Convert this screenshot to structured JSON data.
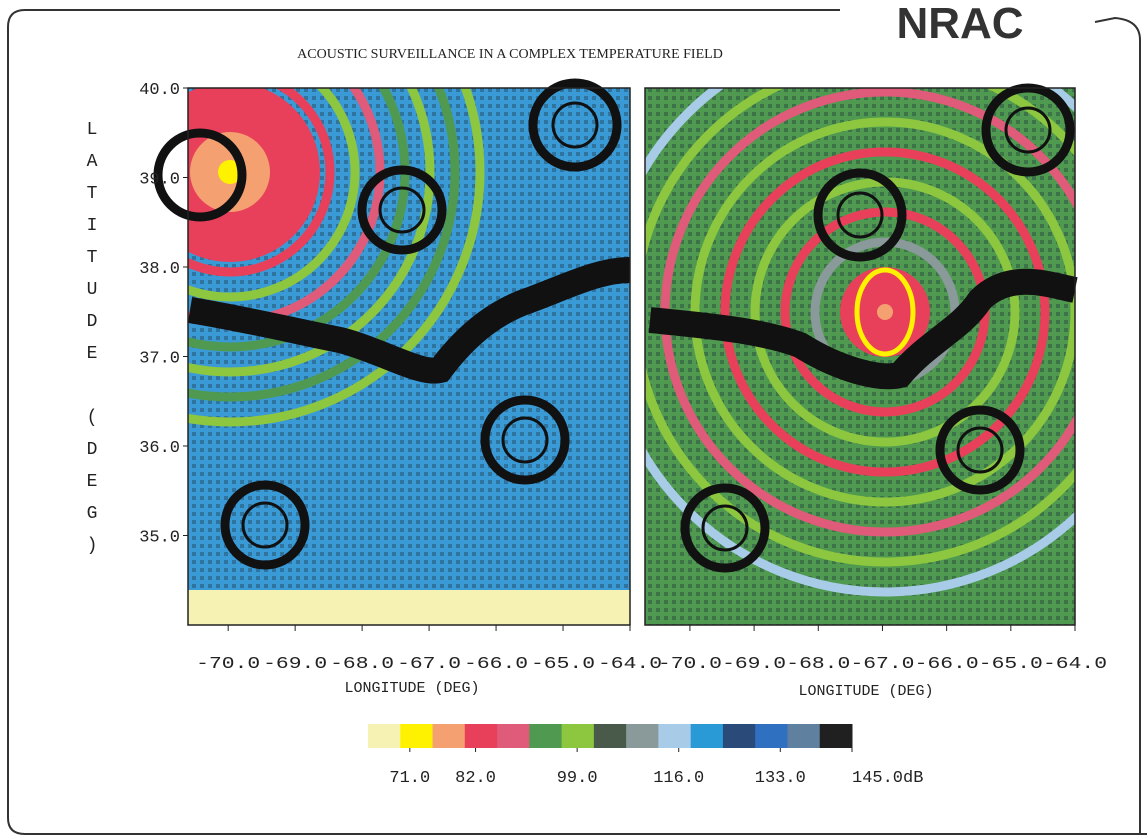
{
  "header": "NRAC",
  "chart_data": [
    {
      "type": "heatmap",
      "title": "ACOUSTIC SURVEILLANCE IN A COMPLEX TEMPERATURE FIELD",
      "ylabel": "LATITUDE (DEG)",
      "xlabel": "LONGITUDE (DEG)",
      "xlim": [
        -70.6,
        -64
      ],
      "ylim": [
        34,
        40
      ],
      "xticks": [
        {
          "value": -70,
          "label": "-70.0"
        },
        {
          "value": -69,
          "label": "-69.0"
        },
        {
          "value": -68,
          "label": "-68.0"
        },
        {
          "value": -67,
          "label": "-67.0"
        },
        {
          "value": -66,
          "label": "-66.0"
        },
        {
          "value": -65,
          "label": "-65.0"
        },
        {
          "value": -64,
          "label": "-64.0"
        }
      ],
      "yticks": [
        {
          "value": 40,
          "label": "40.0"
        },
        {
          "value": 39,
          "label": "39.0"
        },
        {
          "value": 38,
          "label": "38.0"
        },
        {
          "value": 37,
          "label": "37.0"
        },
        {
          "value": 36,
          "label": "36.0"
        },
        {
          "value": 35,
          "label": "35.0"
        }
      ],
      "colorbar": {
        "colors": [
          "#f6f2b4",
          "#fff200",
          "#f4a070",
          "#e8405a",
          "#e05a7a",
          "#4f9a50",
          "#8dc63f",
          "#4a5a4a",
          "#8a9a9a",
          "#a8cce8",
          "#2a9ad6",
          "#2a4a7a",
          "#3070c0",
          "#6080a0",
          "#202020"
        ],
        "lim": [
          64,
          145
        ],
        "ticks": [
          {
            "value": 71,
            "label": "71.0"
          },
          {
            "value": 82,
            "label": "82.0"
          },
          {
            "value": 99,
            "label": "99.0"
          },
          {
            "value": 116,
            "label": "116.0"
          },
          {
            "value": 133,
            "label": "133.0"
          },
          {
            "value": 145,
            "label": "145.0dB"
          }
        ]
      }
    },
    {
      "type": "heatmap",
      "xlabel": "LONGITUDE (DEG)",
      "xlim": [
        -70.7,
        -64
      ],
      "xticks": [
        {
          "value": -70,
          "label": "-70.0"
        },
        {
          "value": -69,
          "label": "-69.0"
        },
        {
          "value": -68,
          "label": "-68.0"
        },
        {
          "value": -67,
          "label": "-67.0"
        },
        {
          "value": -66,
          "label": "-66.0"
        },
        {
          "value": -65,
          "label": "-65.0"
        },
        {
          "value": -64,
          "label": "-64.0"
        }
      ]
    }
  ]
}
